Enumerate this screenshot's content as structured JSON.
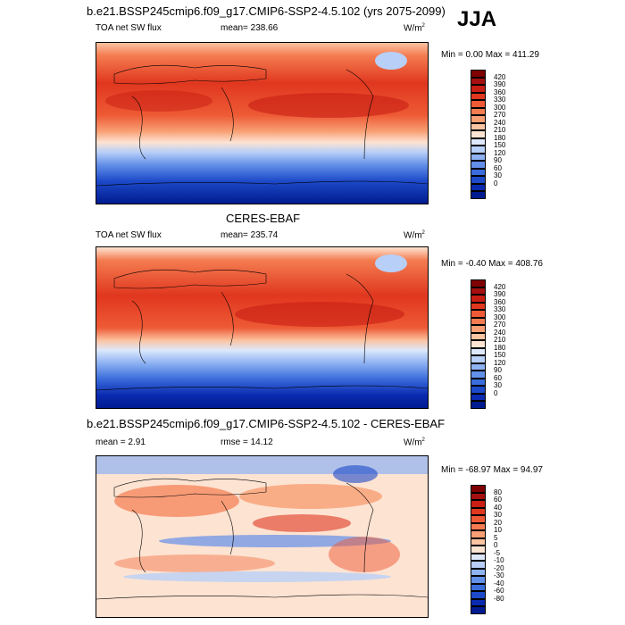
{
  "header": {
    "title_top": "b.e21.BSSP245cmip6.f09_g17.CMIP6-SSP2-4.5.102 (yrs 2075-2099)",
    "season": "JJA",
    "title_mid": "CERES-EBAF",
    "title_bottom": "b.e21.BSSP245cmip6.f09_g17.CMIP6-SSP2-4.5.102 - CERES-EBAF"
  },
  "panels": [
    {
      "variable": "TOA net SW flux",
      "stat": "mean=  238.66",
      "units": "W/m",
      "units_sup": "2",
      "minmax": "Min =   0.00 Max = 411.29",
      "colorbar": {
        "ticks": [
          "420",
          "390",
          "360",
          "330",
          "300",
          "270",
          "240",
          "210",
          "180",
          "150",
          "120",
          "90",
          "60",
          "30",
          "0"
        ],
        "colors": [
          "#7f0000",
          "#a50f0f",
          "#c81e14",
          "#e0371f",
          "#ee5a35",
          "#f47c50",
          "#f89f74",
          "#fbc4a2",
          "#fde3d2",
          "#dde8fb",
          "#b8cff8",
          "#8eb2f2",
          "#628fe8",
          "#3a6cdb",
          "#1d4ac9",
          "#0a2ab0",
          "#001b8f"
        ]
      }
    },
    {
      "variable": "TOA net SW flux",
      "stat": "mean=  235.74",
      "units": "W/m",
      "units_sup": "2",
      "minmax": "Min =  -0.40 Max = 408.76",
      "colorbar": {
        "ticks": [
          "420",
          "390",
          "360",
          "330",
          "300",
          "270",
          "240",
          "210",
          "180",
          "150",
          "120",
          "90",
          "60",
          "30",
          "0"
        ],
        "colors": [
          "#7f0000",
          "#a50f0f",
          "#c81e14",
          "#e0371f",
          "#ee5a35",
          "#f47c50",
          "#f89f74",
          "#fbc4a2",
          "#fde3d2",
          "#dde8fb",
          "#b8cff8",
          "#8eb2f2",
          "#628fe8",
          "#3a6cdb",
          "#1d4ac9",
          "#0a2ab0",
          "#001b8f"
        ]
      }
    },
    {
      "variable": "mean =   2.91",
      "stat": "rmse =  14.12",
      "units": "W/m",
      "units_sup": "2",
      "minmax": "Min =  -68.97 Max =  94.97",
      "colorbar": {
        "ticks": [
          "80",
          "60",
          "40",
          "30",
          "20",
          "10",
          "5",
          "0",
          "-5",
          "-10",
          "-20",
          "-30",
          "-40",
          "-60",
          "-80"
        ],
        "colors": [
          "#7f0000",
          "#a50f0f",
          "#c81e14",
          "#e0371f",
          "#ee5a35",
          "#f47c50",
          "#f89f74",
          "#fbc4a2",
          "#fde3d2",
          "#dde8fb",
          "#b8cff8",
          "#8eb2f2",
          "#628fe8",
          "#3a6cdb",
          "#1d4ac9",
          "#0a2ab0",
          "#001b8f"
        ]
      }
    }
  ]
}
